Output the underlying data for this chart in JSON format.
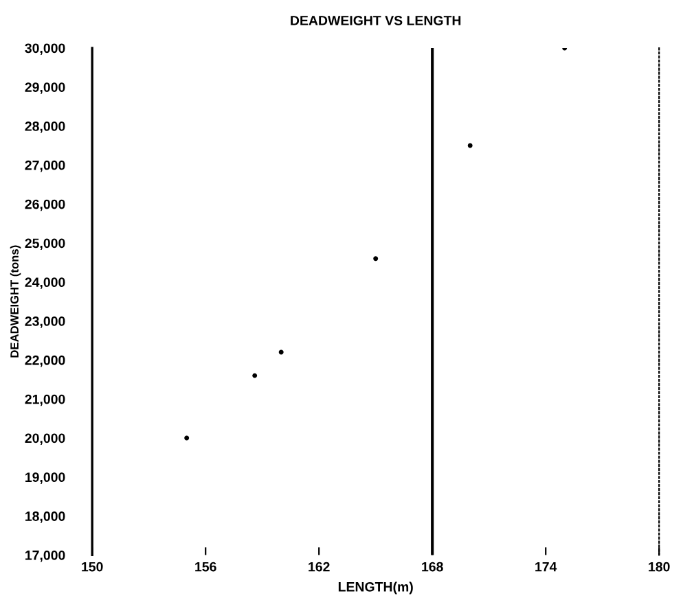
{
  "chart_data": {
    "type": "scatter",
    "title": "DEADWEIGHT VS LENGTH",
    "xlabel": "LENGTH(m)",
    "ylabel": "DEADWEIGHT (tons)",
    "series": [
      {
        "color": "#000000",
        "x": [
          155,
          158.6,
          160,
          165,
          170,
          175
        ],
        "values": [
          20000,
          21600,
          22200,
          24600,
          27500,
          30000
        ]
      }
    ],
    "ref_lines": [
      {
        "axis": "x",
        "value": 168,
        "color": "#000000",
        "line_style": "solid"
      }
    ],
    "xlim": [
      150,
      180
    ],
    "xticks": [
      150,
      156,
      162,
      168,
      174,
      180
    ],
    "ylim": [
      17000,
      30000
    ],
    "yticks": [
      {
        "value": 17000,
        "label": "17,000"
      },
      {
        "value": 18000,
        "label": "18,000"
      },
      {
        "value": 19000,
        "label": "19,000"
      },
      {
        "value": 20000,
        "label": "20,000"
      },
      {
        "value": 21000,
        "label": "21,000"
      },
      {
        "value": 22000,
        "label": "22,000"
      },
      {
        "value": 23000,
        "label": "23,000"
      },
      {
        "value": 24000,
        "label": "24,000"
      },
      {
        "value": 25000,
        "label": "25,000"
      },
      {
        "value": 26000,
        "label": "26,000"
      },
      {
        "value": 27000,
        "label": "27,000"
      },
      {
        "value": 28000,
        "label": "28,000"
      },
      {
        "value": 29000,
        "label": "29,000"
      },
      {
        "value": 30000,
        "label": "30,000"
      }
    ],
    "grid": false,
    "legend": false,
    "marker": "circle"
  }
}
